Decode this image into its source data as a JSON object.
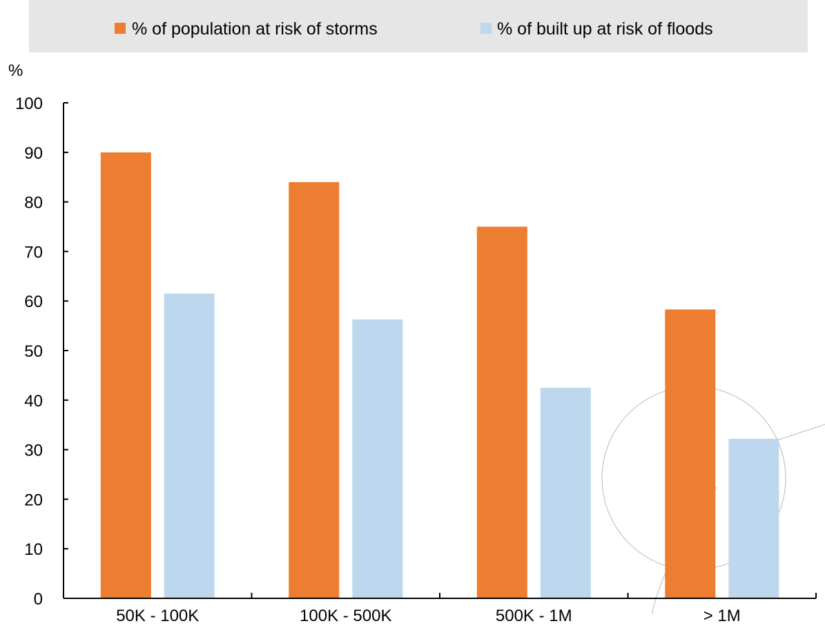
{
  "chart_data": {
    "type": "bar",
    "unit_label": "%",
    "categories": [
      "50K - 100K",
      "100K - 500K",
      "500K - 1M",
      "> 1M"
    ],
    "series": [
      {
        "name": "% of population at risk of storms",
        "color": "#ED7D31",
        "values": [
          90,
          84,
          75,
          58.3
        ]
      },
      {
        "name": "% of built up at risk of floods",
        "color": "#BDD7EE",
        "values": [
          61.5,
          56.3,
          42.5,
          32.2
        ]
      }
    ],
    "y_ticks": [
      "0",
      "10",
      "20",
      "30",
      "40",
      "50",
      "60",
      "70",
      "80",
      "90",
      "100"
    ],
    "ylim": [
      0,
      100
    ],
    "grid": false,
    "legend_position": "top",
    "legend_background": "#E6E6E6"
  }
}
